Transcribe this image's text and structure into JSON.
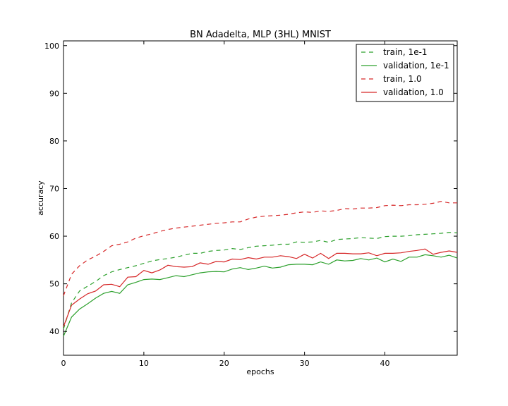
{
  "chart_data": {
    "type": "line",
    "title": "BN Adadelta, MLP (3HL) MNIST",
    "xlabel": "epochs",
    "ylabel": "accuracy",
    "xlim": [
      0,
      49
    ],
    "ylim": [
      35,
      101
    ],
    "xticks": [
      0,
      10,
      20,
      30,
      40
    ],
    "yticks": [
      40,
      50,
      60,
      70,
      80,
      90,
      100
    ],
    "grid": false,
    "legend_position": "top-right",
    "x": [
      0,
      1,
      2,
      3,
      4,
      5,
      6,
      7,
      8,
      9,
      10,
      11,
      12,
      13,
      14,
      15,
      16,
      17,
      18,
      19,
      20,
      21,
      22,
      23,
      24,
      25,
      26,
      27,
      28,
      29,
      30,
      31,
      32,
      33,
      34,
      35,
      36,
      37,
      38,
      39,
      40,
      41,
      42,
      43,
      44,
      45,
      46,
      47,
      48,
      49
    ],
    "series": [
      {
        "name": "train, 1e-1",
        "color": "#2ca02c",
        "dash": "dashed",
        "values": [
          40.5,
          46.0,
          48.5,
          49.5,
          50.5,
          51.7,
          52.5,
          53.0,
          53.4,
          53.8,
          54.3,
          54.8,
          55.1,
          55.3,
          55.6,
          56.0,
          56.4,
          56.4,
          56.8,
          57.0,
          57.1,
          57.4,
          57.2,
          57.6,
          57.9,
          58.0,
          58.1,
          58.3,
          58.3,
          58.8,
          58.7,
          58.8,
          59.1,
          58.7,
          59.3,
          59.4,
          59.5,
          59.7,
          59.6,
          59.5,
          59.9,
          60.0,
          60.0,
          60.1,
          60.3,
          60.4,
          60.5,
          60.6,
          60.8,
          60.7
        ]
      },
      {
        "name": "validation, 1e-1",
        "color": "#2ca02c",
        "dash": "solid",
        "values": [
          39.0,
          43.0,
          44.7,
          45.8,
          47.0,
          48.0,
          48.4,
          48.0,
          49.8,
          50.3,
          50.9,
          51.0,
          50.9,
          51.3,
          51.7,
          51.5,
          51.9,
          52.3,
          52.5,
          52.6,
          52.5,
          53.1,
          53.4,
          53.0,
          53.3,
          53.7,
          53.3,
          53.5,
          54.0,
          54.1,
          54.1,
          54.0,
          54.6,
          54.1,
          55.0,
          54.8,
          54.9,
          55.3,
          55.0,
          55.4,
          54.6,
          55.2,
          54.7,
          55.6,
          55.6,
          56.1,
          55.9,
          55.6,
          56.0,
          55.4
        ]
      },
      {
        "name": "train, 1.0",
        "color": "#d62728",
        "dash": "dashed",
        "values": [
          47.5,
          52.0,
          53.8,
          55.0,
          55.8,
          56.8,
          58.0,
          58.3,
          58.8,
          59.6,
          60.1,
          60.5,
          61.0,
          61.4,
          61.7,
          61.9,
          62.1,
          62.3,
          62.5,
          62.7,
          62.8,
          63.0,
          63.0,
          63.6,
          64.0,
          64.2,
          64.3,
          64.4,
          64.6,
          64.9,
          65.1,
          65.0,
          65.3,
          65.2,
          65.4,
          65.8,
          65.7,
          65.9,
          65.9,
          66.0,
          66.4,
          66.5,
          66.4,
          66.6,
          66.6,
          66.7,
          66.9,
          67.3,
          67.0,
          67.0
        ]
      },
      {
        "name": "validation, 1.0",
        "color": "#d62728",
        "dash": "solid",
        "values": [
          41.0,
          45.5,
          46.8,
          47.9,
          48.5,
          49.8,
          49.9,
          49.4,
          51.4,
          51.5,
          52.8,
          52.3,
          52.9,
          53.9,
          53.6,
          53.5,
          53.6,
          54.4,
          54.1,
          54.7,
          54.6,
          55.2,
          55.1,
          55.5,
          55.2,
          55.6,
          55.6,
          55.9,
          55.7,
          55.3,
          56.2,
          55.4,
          56.4,
          55.3,
          56.4,
          56.4,
          56.3,
          56.3,
          56.5,
          55.9,
          56.4,
          56.4,
          56.5,
          56.8,
          57.0,
          57.3,
          56.2,
          56.6,
          56.9,
          56.6
        ]
      }
    ]
  }
}
